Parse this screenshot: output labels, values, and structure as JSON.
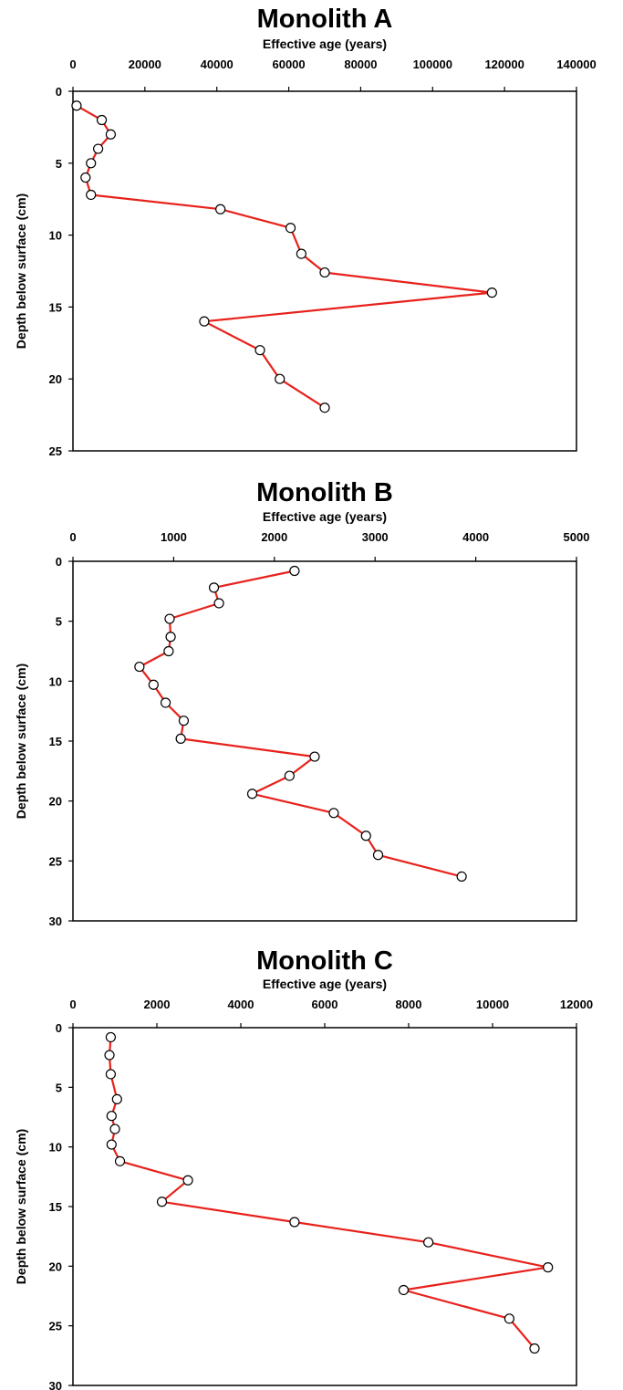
{
  "chart_data": [
    {
      "type": "scatter",
      "title": "Monolith A",
      "xlabel": "Effective age (years)",
      "ylabel": "Depth below surface (cm)",
      "xlim": [
        0,
        140000
      ],
      "ylim": [
        0,
        25
      ],
      "y_inverted": true,
      "x_axis_position": "top",
      "xticks": [
        0,
        20000,
        40000,
        60000,
        80000,
        100000,
        120000,
        140000
      ],
      "yticks": [
        0,
        5,
        10,
        15,
        20,
        25
      ],
      "x_tick_labels": [
        "0",
        "20000",
        "40000",
        "60000",
        "80000",
        "100000",
        "120000",
        "140000"
      ],
      "y_tick_labels": [
        "0",
        "5",
        "10",
        "15",
        "20",
        "25"
      ],
      "line_color": "#e8211b",
      "marker_fill": "#ffffff",
      "marker_edge": "#000000",
      "points": [
        {
          "x": 1000,
          "y": 1
        },
        {
          "x": 8000,
          "y": 2
        },
        {
          "x": 10500,
          "y": 3
        },
        {
          "x": 7000,
          "y": 4
        },
        {
          "x": 5000,
          "y": 5
        },
        {
          "x": 3500,
          "y": 6
        },
        {
          "x": 5000,
          "y": 7.2
        },
        {
          "x": 41000,
          "y": 8.2
        },
        {
          "x": 60500,
          "y": 9.5
        },
        {
          "x": 63500,
          "y": 11.3
        },
        {
          "x": 70000,
          "y": 12.6
        },
        {
          "x": 116500,
          "y": 14
        },
        {
          "x": 36500,
          "y": 16
        },
        {
          "x": 52000,
          "y": 18
        },
        {
          "x": 57500,
          "y": 20
        },
        {
          "x": 70000,
          "y": 22
        }
      ]
    },
    {
      "type": "scatter",
      "title": "Monolith B",
      "xlabel": "Effective age (years)",
      "ylabel": "Depth below surface (cm)",
      "xlim": [
        0,
        5000
      ],
      "ylim": [
        0,
        30
      ],
      "y_inverted": true,
      "x_axis_position": "top",
      "xticks": [
        0,
        1000,
        2000,
        3000,
        4000,
        5000
      ],
      "yticks": [
        0,
        5,
        10,
        15,
        20,
        25,
        30
      ],
      "x_tick_labels": [
        "0",
        "1000",
        "2000",
        "3000",
        "4000",
        "5000"
      ],
      "y_tick_labels": [
        "0",
        "5",
        "10",
        "15",
        "20",
        "25",
        "30"
      ],
      "line_color": "#e8211b",
      "marker_fill": "#ffffff",
      "marker_edge": "#000000",
      "points": [
        {
          "x": 2200,
          "y": 0.8
        },
        {
          "x": 1400,
          "y": 2.2
        },
        {
          "x": 1450,
          "y": 3.5
        },
        {
          "x": 960,
          "y": 4.8
        },
        {
          "x": 970,
          "y": 6.3
        },
        {
          "x": 950,
          "y": 7.5
        },
        {
          "x": 660,
          "y": 8.8
        },
        {
          "x": 800,
          "y": 10.3
        },
        {
          "x": 920,
          "y": 11.8
        },
        {
          "x": 1100,
          "y": 13.3
        },
        {
          "x": 1070,
          "y": 14.8
        },
        {
          "x": 2400,
          "y": 16.3
        },
        {
          "x": 2150,
          "y": 17.9
        },
        {
          "x": 1780,
          "y": 19.4
        },
        {
          "x": 2590,
          "y": 21
        },
        {
          "x": 2910,
          "y": 22.9
        },
        {
          "x": 3030,
          "y": 24.5
        },
        {
          "x": 3860,
          "y": 26.3
        }
      ]
    },
    {
      "type": "scatter",
      "title": "Monolith C",
      "xlabel": "Effective age (years)",
      "ylabel": "Depth below surface (cm)",
      "xlim": [
        0,
        12000
      ],
      "ylim": [
        0,
        30
      ],
      "y_inverted": true,
      "x_axis_position": "top",
      "xticks": [
        0,
        2000,
        4000,
        6000,
        8000,
        10000,
        12000
      ],
      "yticks": [
        0,
        5,
        10,
        15,
        20,
        25,
        30
      ],
      "x_tick_labels": [
        "0",
        "2000",
        "4000",
        "6000",
        "8000",
        "10000",
        "12000"
      ],
      "y_tick_labels": [
        "0",
        "5",
        "10",
        "15",
        "20",
        "25",
        "30"
      ],
      "line_color": "#e8211b",
      "marker_fill": "#ffffff",
      "marker_edge": "#000000",
      "points": [
        {
          "x": 900,
          "y": 0.8
        },
        {
          "x": 870,
          "y": 2.3
        },
        {
          "x": 900,
          "y": 3.9
        },
        {
          "x": 1050,
          "y": 6
        },
        {
          "x": 920,
          "y": 7.4
        },
        {
          "x": 1000,
          "y": 8.5
        },
        {
          "x": 920,
          "y": 9.8
        },
        {
          "x": 1120,
          "y": 11.2
        },
        {
          "x": 2740,
          "y": 12.8
        },
        {
          "x": 2120,
          "y": 14.6
        },
        {
          "x": 5280,
          "y": 16.3
        },
        {
          "x": 8470,
          "y": 18
        },
        {
          "x": 11320,
          "y": 20.1
        },
        {
          "x": 7880,
          "y": 22
        },
        {
          "x": 10400,
          "y": 24.4
        },
        {
          "x": 11000,
          "y": 26.9
        }
      ]
    }
  ]
}
